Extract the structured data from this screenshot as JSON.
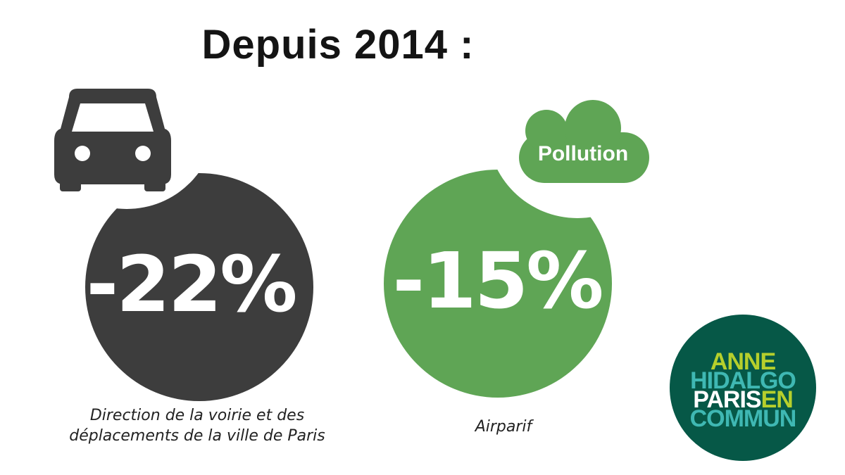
{
  "header": {
    "title": "Depuis 2014 :"
  },
  "stats": [
    {
      "value": "-22%",
      "icon": "car-icon",
      "color": "#3d3d3d",
      "source": "Direction de la voirie et des déplacements de la ville de Paris"
    },
    {
      "value": "-15%",
      "icon": "cloud-icon",
      "icon_label": "Pollution",
      "color": "#5fa555",
      "source": "Airparif"
    }
  ],
  "logo": {
    "line1": "ANNE",
    "line2": "HIDALGO",
    "line3a": "PARIS",
    "line3b": "EN",
    "line4": "COMMUN",
    "colors": {
      "background": "#065847",
      "lime": "#b6cf2c",
      "teal": "#3fb8b3"
    }
  }
}
